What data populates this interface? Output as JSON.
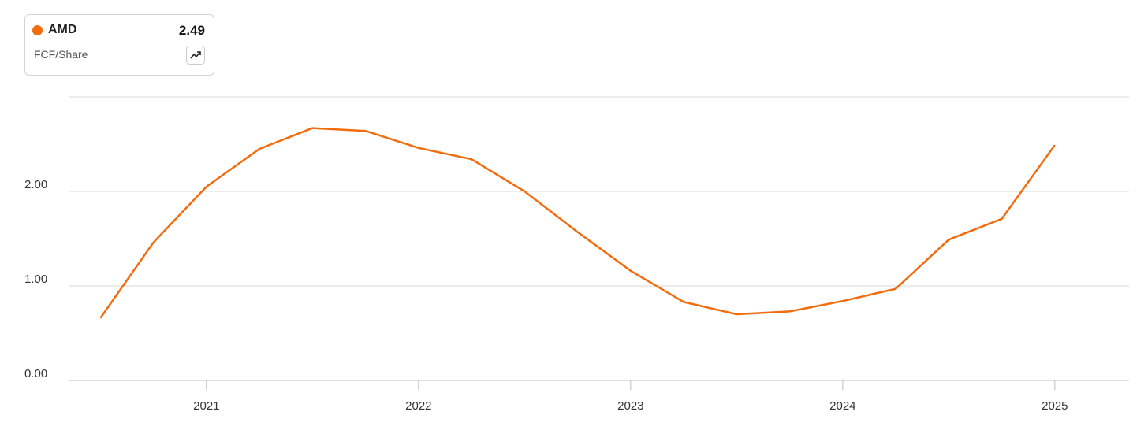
{
  "chart_data": {
    "type": "line",
    "metric": "FCF/Share",
    "x": [
      2020.5,
      2020.75,
      2021,
      2021.25,
      2021.5,
      2021.75,
      2022,
      2022.25,
      2022.5,
      2022.75,
      2023,
      2023.25,
      2023.5,
      2023.75,
      2024,
      2024.25,
      2024.5,
      2024.75,
      2025
    ],
    "series": [
      {
        "name": "AMD",
        "color": "#f26c0d",
        "values": [
          0.66,
          1.46,
          2.05,
          2.45,
          2.67,
          2.64,
          2.46,
          2.34,
          2.0,
          1.57,
          1.16,
          0.83,
          0.7,
          0.73,
          0.84,
          0.97,
          1.49,
          1.71,
          2.49
        ]
      }
    ],
    "xlim": [
      2020.35,
      2025.35
    ],
    "xticks": [
      2021,
      2022,
      2023,
      2024,
      2025
    ],
    "ylim": [
      0,
      3
    ],
    "yticks": [
      {
        "value": 0,
        "label": "0.00"
      },
      {
        "value": 1,
        "label": "1.00"
      },
      {
        "value": 2,
        "label": "2.00"
      }
    ],
    "grid": true
  }
}
